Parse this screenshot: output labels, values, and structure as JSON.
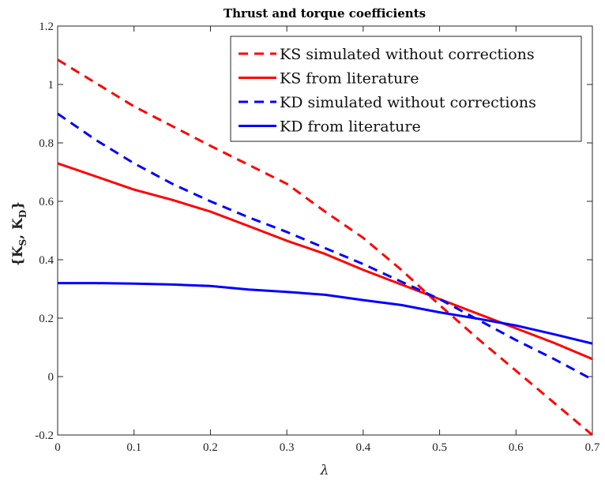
{
  "chart_data": {
    "type": "line",
    "title": "Thrust and torque coefficients",
    "xlabel": "λ",
    "ylabel_parts": {
      "open": "{",
      "k1": "K",
      "sub1": "S",
      "sep": ", ",
      "k2": "K",
      "sub2": "D",
      "close": "}"
    },
    "xlim": [
      0,
      0.7
    ],
    "ylim": [
      -0.2,
      1.2
    ],
    "xticks": [
      0,
      0.1,
      0.2,
      0.3,
      0.4,
      0.5,
      0.6,
      0.7
    ],
    "xtick_labels": [
      "0",
      "0.1",
      "0.2",
      "0.3",
      "0.4",
      "0.5",
      "0.6",
      "0.7"
    ],
    "yticks": [
      -0.2,
      0,
      0.2,
      0.4,
      0.6,
      0.8,
      1,
      1.2
    ],
    "ytick_labels": [
      "-0.2",
      "0",
      "0.2",
      "0.4",
      "0.6",
      "0.8",
      "1",
      "1.2"
    ],
    "grid": false,
    "legend_position": "top-right",
    "series": [
      {
        "name": "KS simulated without corrections",
        "color": "#ff0000",
        "dash": "dashed",
        "x": [
          0,
          0.1,
          0.2,
          0.3,
          0.35,
          0.4,
          0.45,
          0.5,
          0.55,
          0.6,
          0.65,
          0.7
        ],
        "y": [
          1.085,
          0.925,
          0.79,
          0.66,
          0.565,
          0.475,
          0.365,
          0.245,
          0.13,
          0.02,
          -0.09,
          -0.2
        ]
      },
      {
        "name": "KS from literature",
        "color": "#ff0000",
        "dash": "solid",
        "x": [
          0,
          0.05,
          0.1,
          0.15,
          0.2,
          0.25,
          0.3,
          0.35,
          0.4,
          0.45,
          0.5,
          0.55,
          0.6,
          0.65,
          0.7
        ],
        "y": [
          0.73,
          0.685,
          0.64,
          0.605,
          0.565,
          0.515,
          0.465,
          0.42,
          0.365,
          0.315,
          0.265,
          0.215,
          0.165,
          0.115,
          0.06
        ]
      },
      {
        "name": "KD simulated without corrections",
        "color": "#0000ff",
        "dash": "dashed",
        "x": [
          0,
          0.05,
          0.1,
          0.15,
          0.2,
          0.25,
          0.3,
          0.35,
          0.4,
          0.45,
          0.5,
          0.55,
          0.6,
          0.65,
          0.7
        ],
        "y": [
          0.9,
          0.81,
          0.73,
          0.66,
          0.6,
          0.545,
          0.495,
          0.44,
          0.385,
          0.325,
          0.265,
          0.195,
          0.125,
          0.06,
          -0.01
        ]
      },
      {
        "name": "KD from literature",
        "color": "#0000ff",
        "dash": "solid",
        "x": [
          0,
          0.05,
          0.1,
          0.15,
          0.2,
          0.25,
          0.3,
          0.35,
          0.4,
          0.45,
          0.5,
          0.55,
          0.6,
          0.65,
          0.7
        ],
        "y": [
          0.32,
          0.32,
          0.318,
          0.315,
          0.31,
          0.298,
          0.29,
          0.28,
          0.262,
          0.245,
          0.22,
          0.198,
          0.175,
          0.145,
          0.113
        ]
      }
    ]
  }
}
